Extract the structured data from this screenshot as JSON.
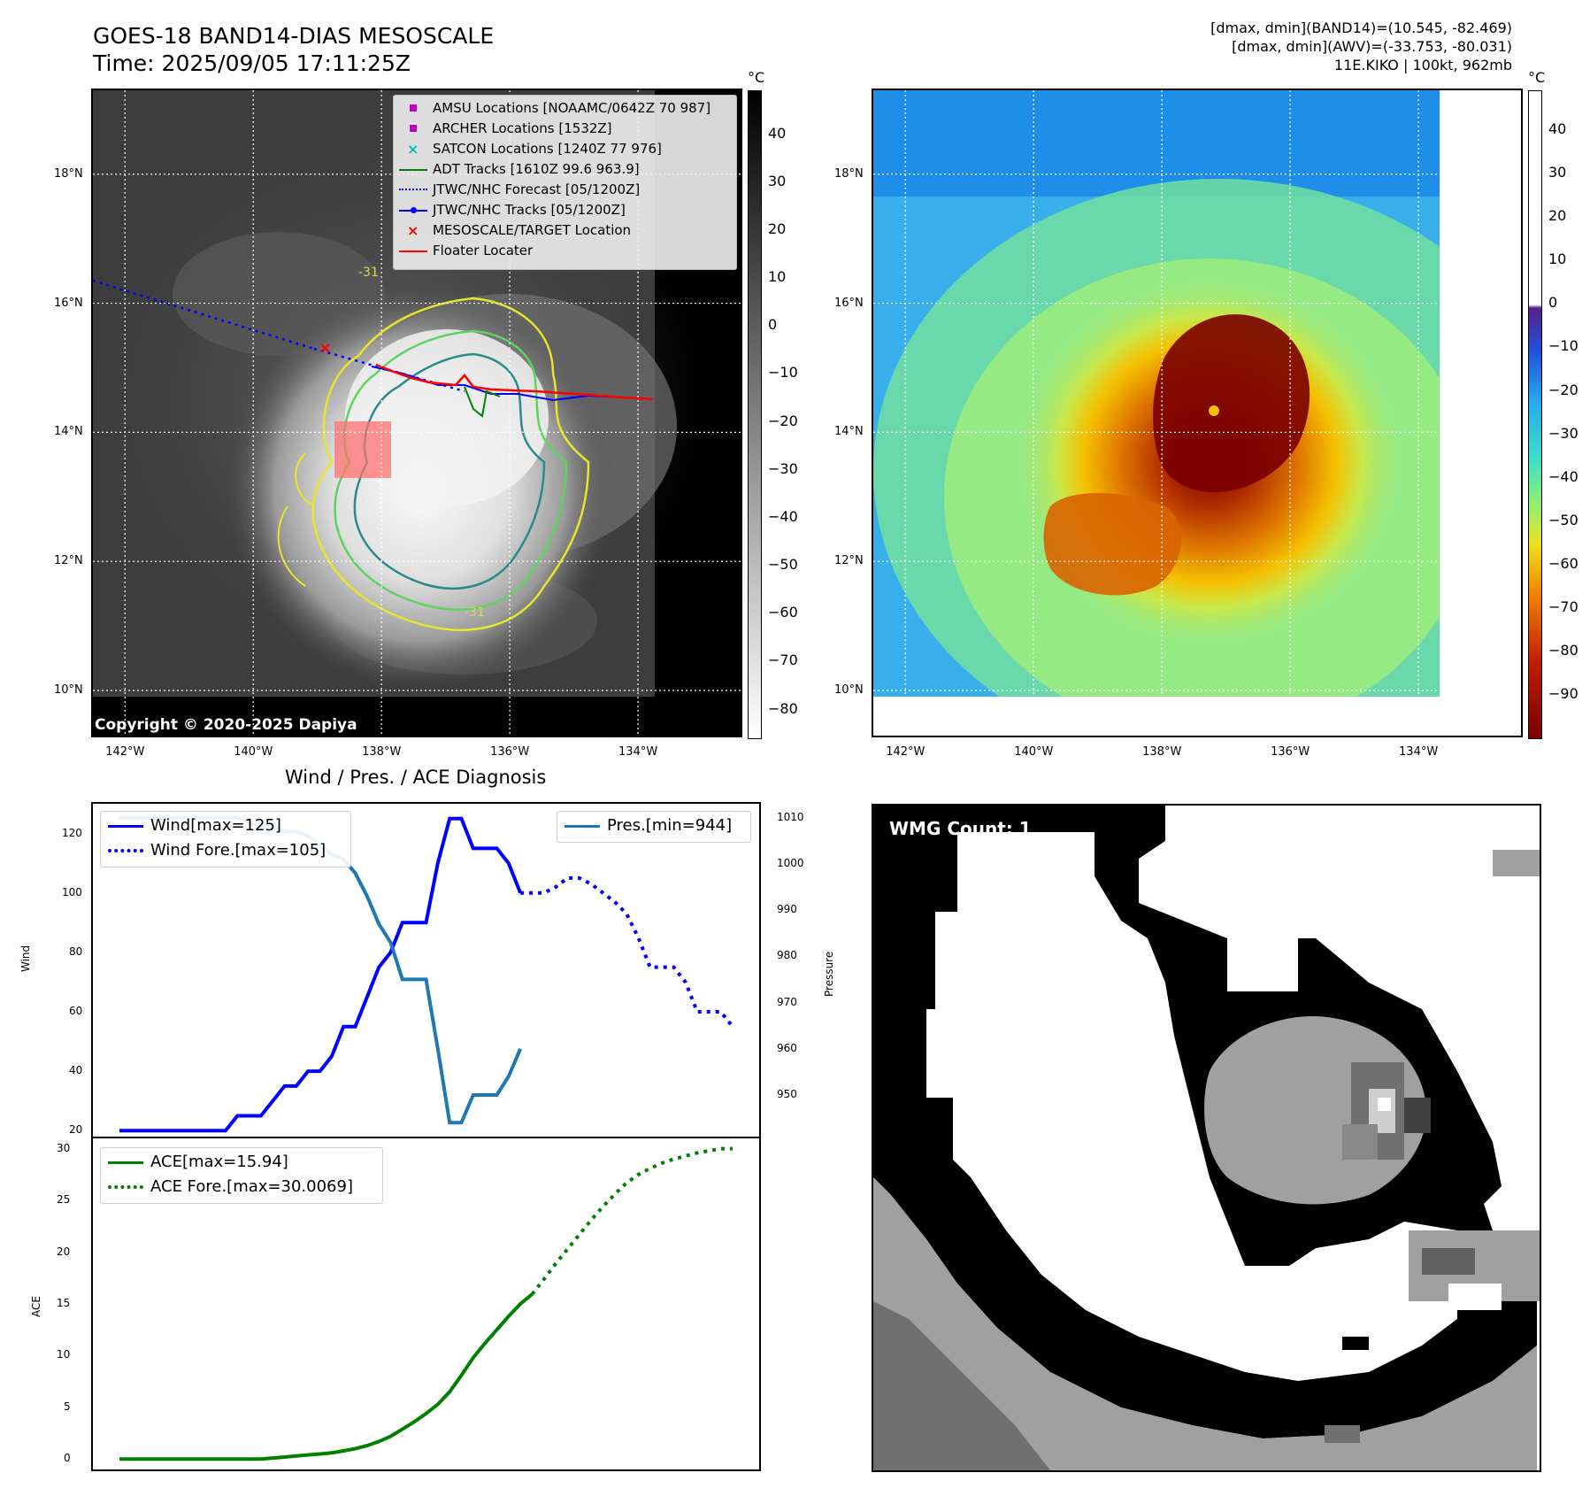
{
  "header": {
    "title_line1": "GOES-18 BAND14-DIAS MESOSCALE",
    "title_line2": "Time: 2025/09/05 17:11:25Z",
    "info_line1": "[dmax, dmin](BAND14)=(10.545, -82.469)",
    "info_line2": "[dmax, dmin](AWV)=(-33.753, -80.031)",
    "info_line3": "11E.KIKO | 100kt, 962mb"
  },
  "map": {
    "lat_labels": [
      "18°N",
      "16°N",
      "14°N",
      "12°N",
      "10°N"
    ],
    "lat_values": [
      18,
      16,
      14,
      12,
      10
    ],
    "lon_labels": [
      "142°W",
      "140°W",
      "138°W",
      "136°W",
      "134°W"
    ],
    "lon_values": [
      -142,
      -140,
      -138,
      -136,
      -134
    ],
    "lon_range": [
      -142.5,
      -132.4
    ],
    "lat_range": [
      9.3,
      19.3
    ],
    "copyright": "Copyright © 2020-2025 Dapiya",
    "contour_labels": [
      "-31",
      "-31"
    ],
    "legend": [
      {
        "label": "AMSU Locations [NOAAMC/0642Z 70 987]",
        "marker": "square",
        "color": "#bf00bf"
      },
      {
        "label": "ARCHER Locations [1532Z]",
        "marker": "square",
        "color": "#bf00bf"
      },
      {
        "label": "SATCON Locations [1240Z 77 976]",
        "marker": "x",
        "color": "#00bfbf"
      },
      {
        "label": "ADT Tracks [1610Z 99.6 963.9]",
        "marker": "line",
        "color": "#008000"
      },
      {
        "label": "JTWC/NHC Forecast [05/1200Z]",
        "marker": "dotted",
        "color": "#0000ff"
      },
      {
        "label": "JTWC/NHC Tracks [05/1200Z]",
        "marker": "line-dot",
        "color": "#0000ff"
      },
      {
        "label": "MESOSCALE/TARGET Location",
        "marker": "x",
        "color": "#ff0000"
      },
      {
        "label": "Floater Locater",
        "marker": "line",
        "color": "#ff0000"
      }
    ],
    "colorbar_gray": {
      "unit": "°C",
      "ticks": [
        "40",
        "30",
        "20",
        "10",
        "0",
        "−10",
        "−20",
        "−30",
        "−40",
        "−50",
        "−60",
        "−70",
        "−80"
      ],
      "values": [
        40,
        30,
        20,
        10,
        0,
        -10,
        -20,
        -30,
        -40,
        -50,
        -60,
        -70,
        -80
      ],
      "range": [
        49,
        -86
      ]
    },
    "colorbar_color": {
      "unit": "°C",
      "ticks": [
        "40",
        "30",
        "20",
        "10",
        "0",
        "−10",
        "−20",
        "−30",
        "−40",
        "−50",
        "−60",
        "−70",
        "−80",
        "−90"
      ],
      "values": [
        40,
        30,
        20,
        10,
        0,
        -10,
        -20,
        -30,
        -40,
        -50,
        -60,
        -70,
        -80,
        -90
      ],
      "range": [
        49,
        -100
      ]
    }
  },
  "diagnosis": {
    "title": "Wind / Pres. / ACE Diagnosis",
    "wind_axis_label": "Wind",
    "pressure_axis_label": "Pressure",
    "ace_axis_label": "ACE",
    "wind_legend": "Wind[max=125]",
    "wind_fore_legend": "Wind Fore.[max=105]",
    "pres_legend": "Pres.[min=944]",
    "ace_legend": "ACE[max=15.94]",
    "ace_fore_legend": "ACE Fore.[max=30.0069]",
    "wind_ticks": [
      "120",
      "100",
      "80",
      "60",
      "40",
      "20"
    ],
    "pres_ticks": [
      "1010",
      "1000",
      "990",
      "980",
      "970",
      "960",
      "950"
    ],
    "ace_ticks": [
      "30",
      "25",
      "20",
      "15",
      "10",
      "5",
      "0"
    ],
    "colors": {
      "wind": "#0000ff",
      "pres": "#1f77b4",
      "ace": "#008000"
    }
  },
  "chart_data": [
    {
      "type": "line",
      "title": "Wind / Pres. / ACE Diagnosis",
      "ylabel": "Wind",
      "ylim": [
        18,
        130
      ],
      "x": [
        0,
        1,
        2,
        3,
        4,
        5,
        6,
        7,
        8,
        9,
        10,
        11,
        12,
        13,
        14,
        15,
        16,
        17,
        18,
        19,
        20,
        21,
        22,
        23,
        24,
        25,
        26,
        27,
        28,
        29,
        30,
        31,
        32,
        33,
        34,
        35,
        36,
        37,
        38,
        39,
        40,
        41,
        42,
        43,
        44,
        45,
        46,
        47,
        48,
        49,
        50,
        51,
        52
      ],
      "series": [
        {
          "name": "Wind[max=125]",
          "values": [
            20,
            20,
            20,
            20,
            20,
            20,
            20,
            20,
            20,
            20,
            25,
            25,
            25,
            30,
            35,
            35,
            40,
            40,
            45,
            55,
            55,
            65,
            75,
            80,
            90,
            90,
            90,
            110,
            125,
            125,
            115,
            115,
            115,
            110,
            100,
            null,
            null,
            null,
            null,
            null,
            null,
            null,
            null,
            null,
            null,
            null,
            null,
            null,
            null,
            null,
            null,
            null,
            null
          ]
        },
        {
          "name": "Wind Fore.[max=105]",
          "values": [
            null,
            null,
            null,
            null,
            null,
            null,
            null,
            null,
            null,
            null,
            null,
            null,
            null,
            null,
            null,
            null,
            null,
            null,
            null,
            null,
            null,
            null,
            null,
            null,
            null,
            null,
            null,
            null,
            null,
            null,
            null,
            null,
            null,
            null,
            100,
            100,
            100,
            102,
            105,
            105,
            103,
            100,
            97,
            93,
            85,
            75,
            75,
            75,
            70,
            60,
            60,
            60,
            55
          ]
        }
      ]
    },
    {
      "type": "line",
      "ylabel": "Pressure",
      "ylim": [
        941,
        1013
      ],
      "x": [
        0,
        1,
        2,
        3,
        4,
        5,
        6,
        7,
        8,
        9,
        10,
        11,
        12,
        13,
        14,
        15,
        16,
        17,
        18,
        19,
        20,
        21,
        22,
        23,
        24,
        25,
        26,
        27,
        28,
        29,
        30,
        31,
        32,
        33,
        34
      ],
      "series": [
        {
          "name": "Pres.[min=944]",
          "values": [
            1010,
            1010,
            1010,
            1010,
            1010,
            1010,
            1010,
            1010,
            1010,
            1010,
            1010,
            1009,
            1008,
            1008,
            1007,
            1007,
            1006,
            1004,
            1002,
            1001,
            998,
            993,
            987,
            983,
            975,
            975,
            975,
            960,
            944,
            944,
            950,
            950,
            950,
            954,
            960
          ]
        }
      ]
    },
    {
      "type": "line",
      "ylabel": "ACE",
      "ylim": [
        -1,
        31
      ],
      "x": [
        0,
        1,
        2,
        3,
        4,
        5,
        6,
        7,
        8,
        9,
        10,
        11,
        12,
        13,
        14,
        15,
        16,
        17,
        18,
        19,
        20,
        21,
        22,
        23,
        24,
        25,
        26,
        27,
        28,
        29,
        30,
        31,
        32,
        33,
        34,
        35,
        36,
        37,
        38,
        39,
        40,
        41,
        42,
        43,
        44,
        45,
        46,
        47,
        48,
        49,
        50,
        51,
        52
      ],
      "series": [
        {
          "name": "ACE[max=15.94]",
          "values": [
            0,
            0,
            0,
            0,
            0,
            0,
            0,
            0,
            0,
            0,
            0,
            0,
            0,
            0.1,
            0.2,
            0.3,
            0.4,
            0.5,
            0.6,
            0.8,
            1.0,
            1.3,
            1.7,
            2.2,
            2.9,
            3.6,
            4.4,
            5.3,
            6.5,
            8.1,
            9.8,
            11.2,
            12.5,
            13.8,
            15.0,
            15.94,
            null,
            null,
            null,
            null,
            null,
            null,
            null,
            null,
            null,
            null,
            null,
            null,
            null,
            null,
            null,
            null,
            null
          ]
        },
        {
          "name": "ACE Fore.[max=30.0069]",
          "values": [
            null,
            null,
            null,
            null,
            null,
            null,
            null,
            null,
            null,
            null,
            null,
            null,
            null,
            null,
            null,
            null,
            null,
            null,
            null,
            null,
            null,
            null,
            null,
            null,
            null,
            null,
            null,
            null,
            null,
            null,
            null,
            null,
            null,
            null,
            null,
            15.94,
            17.4,
            18.9,
            20.3,
            21.7,
            23.1,
            24.4,
            25.6,
            26.7,
            27.5,
            28.1,
            28.6,
            29.0,
            29.3,
            29.6,
            29.8,
            30.0,
            30.0069
          ]
        }
      ]
    }
  ],
  "wmg": {
    "label": "WMG Count: 1"
  }
}
